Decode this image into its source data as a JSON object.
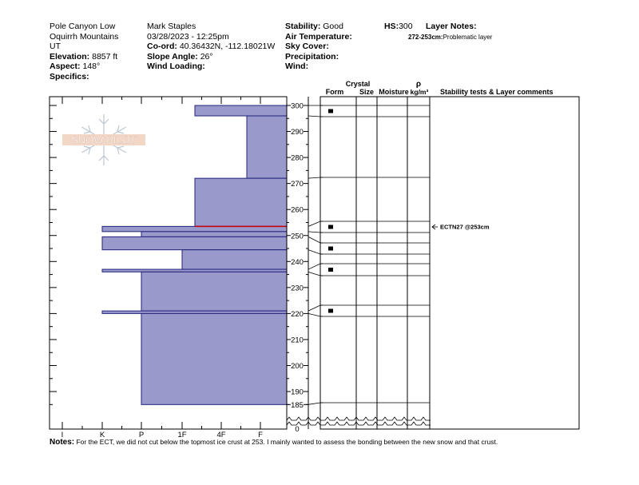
{
  "header": {
    "col1": {
      "location": "Pole Canyon Low",
      "range": "Oquirrh Mountains",
      "state": "UT",
      "elevation_label": "Elevation:",
      "elevation_value": "8857 ft",
      "aspect_label": "Aspect:",
      "aspect_value": "148°",
      "specifics_label": "Specifics:"
    },
    "col2": {
      "observer": "Mark Staples",
      "datetime": "03/28/2023 - 12:25pm",
      "coord_label": "Co-ord:",
      "coord_value": "40.36432N, -112.18021W",
      "slope_label": "Slope Angle:",
      "slope_value": "26°",
      "wind_loading_label": "Wind Loading:"
    },
    "col3": {
      "stability_label": "Stability:",
      "stability_value": "Good",
      "air_temp_label": "Air Temperature:",
      "sky_label": "Sky Cover:",
      "precip_label": "Precipitation:",
      "wind_label": "Wind:"
    },
    "hs_label": "HS:",
    "hs_value": "300",
    "layer_notes_label": "Layer Notes:",
    "layer_note_range": "272-253cm:",
    "layer_note_text": "Problematic layer"
  },
  "columns": {
    "crystal": "Crystal",
    "form": "Form",
    "size": "Size",
    "moisture": "Moisture",
    "rho": "ρ",
    "density_unit": "kg/m³",
    "stability": "Stability tests & Layer comments"
  },
  "logo_text": "SNOW PILOT",
  "stability_test": {
    "label": "ECTN27 @253cm",
    "depth": 253
  },
  "notes": {
    "label": "Notes:",
    "text": " For the ECT, we did not cut below the topmost ice crust at 253. I mainly wanted to assess the bonding between the new snow and that crust."
  },
  "colors": {
    "hardness_fill": "#9999cc",
    "hardness_stroke": "#22227a",
    "red_line": "#cc0000"
  },
  "chart_data": {
    "type": "snow-profile",
    "hardness_ticks": [
      "I",
      "K",
      "P",
      "1F",
      "4F",
      "F"
    ],
    "height_ticks": [
      300,
      290,
      280,
      270,
      260,
      250,
      240,
      230,
      220,
      210,
      200,
      190,
      185,
      0
    ],
    "hardness_layers": [
      {
        "top": 300,
        "bottom": 296,
        "hardness": "1F+"
      },
      {
        "top": 296,
        "bottom": 272,
        "hardness": "4F+"
      },
      {
        "top": 272,
        "bottom": 253.5,
        "hardness": "1F+"
      },
      {
        "top": 253.5,
        "bottom": 251.5,
        "hardness": "K-"
      },
      {
        "top": 251.5,
        "bottom": 249.5,
        "hardness": "P"
      },
      {
        "top": 249.5,
        "bottom": 244.5,
        "hardness": "K-"
      },
      {
        "top": 244.5,
        "bottom": 237,
        "hardness": "1F"
      },
      {
        "top": 237,
        "bottom": 236,
        "hardness": "K-"
      },
      {
        "top": 236,
        "bottom": 221,
        "hardness": "P"
      },
      {
        "top": 221,
        "bottom": 220,
        "hardness": "K-"
      },
      {
        "top": 220,
        "bottom": 185,
        "hardness": "P"
      }
    ],
    "red_line_depth": 253.5,
    "form_layers": [
      {
        "top": 300,
        "bottom": 296,
        "form_mark": true
      },
      {
        "top": 296,
        "bottom": 272,
        "form_mark": false
      },
      {
        "top": 272,
        "bottom": 253.5,
        "form_mark": false
      },
      {
        "top": 253.5,
        "bottom": 251.5,
        "form_mark": true
      },
      {
        "top": 251.5,
        "bottom": 249.5,
        "form_mark": false
      },
      {
        "top": 249.5,
        "bottom": 244.5,
        "form_mark": true
      },
      {
        "top": 244.5,
        "bottom": 237,
        "form_mark": false
      },
      {
        "top": 237,
        "bottom": 236,
        "form_mark": true
      },
      {
        "top": 236,
        "bottom": 221,
        "form_mark": false
      },
      {
        "top": 221,
        "bottom": 220,
        "form_mark": true
      },
      {
        "top": 220,
        "bottom": 185,
        "form_mark": false
      }
    ]
  }
}
